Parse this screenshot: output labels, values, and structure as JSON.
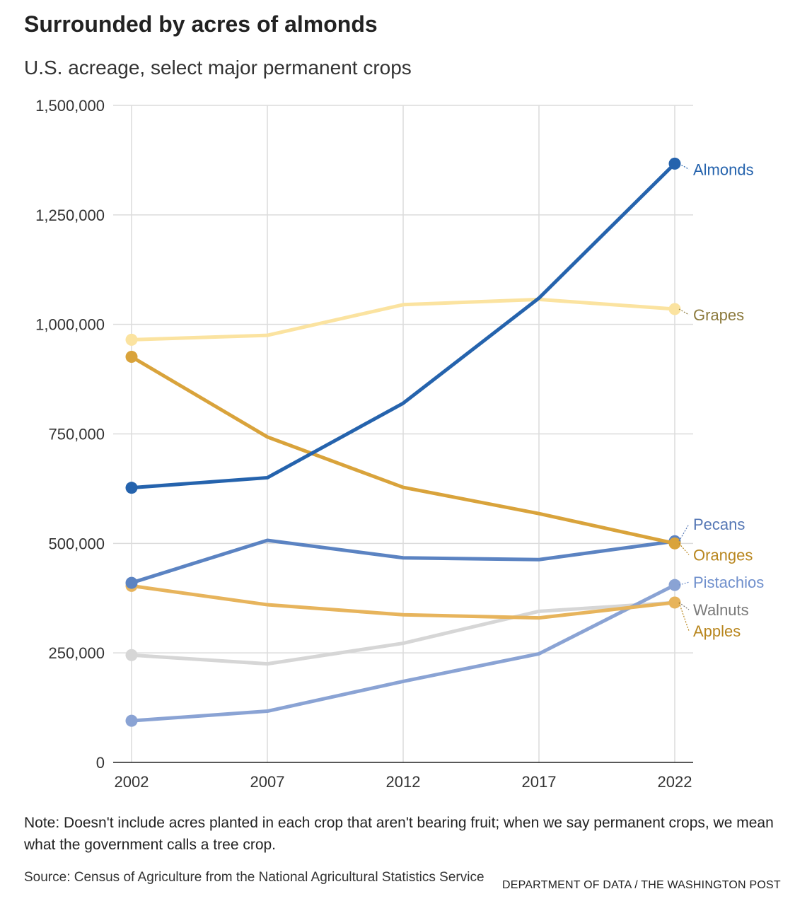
{
  "header": {
    "title": "Surrounded by acres of almonds",
    "subtitle": "U.S. acreage, select major permanent crops"
  },
  "chart_data": {
    "type": "line",
    "title": "Surrounded by acres of almonds",
    "subtitle": "U.S. acreage, select major permanent crops",
    "xlabel": "",
    "ylabel": "",
    "x": [
      2002,
      2007,
      2012,
      2017,
      2022
    ],
    "x_tick_labels": [
      "2002",
      "2007",
      "2012",
      "2017",
      "2022"
    ],
    "ylim": [
      0,
      1500000
    ],
    "y_ticks": [
      0,
      250000,
      500000,
      750000,
      1000000,
      1250000,
      1500000
    ],
    "y_tick_labels": [
      "0",
      "250,000",
      "500,000",
      "750,000",
      "1,000,000",
      "1,250,000",
      "1,500,000"
    ],
    "grid": true,
    "legend": "direct labels at right end of lines",
    "series": [
      {
        "name": "Walnuts",
        "color": "#d6d6d6",
        "label_color": "#7a7a7a",
        "values": [
          245000,
          225000,
          272000,
          345000,
          365000
        ]
      },
      {
        "name": "Pistachios",
        "color": "#8aa3d4",
        "label_color": "#6f8fcc",
        "values": [
          95000,
          117000,
          185000,
          248000,
          405000
        ]
      },
      {
        "name": "Apples",
        "color": "#e7b45c",
        "label_color": "#b8861e",
        "values": [
          403000,
          360000,
          337000,
          330000,
          365000
        ]
      },
      {
        "name": "Pecans",
        "color": "#5b83c2",
        "label_color": "#5577b5",
        "values": [
          410000,
          507000,
          467000,
          463000,
          505000
        ]
      },
      {
        "name": "Oranges",
        "color": "#d9a33b",
        "label_color": "#b8861e",
        "values": [
          926000,
          743000,
          628000,
          568000,
          500000
        ]
      },
      {
        "name": "Grapes",
        "color": "#fbe3a0",
        "label_color": "#8c7a3d",
        "values": [
          965000,
          975000,
          1045000,
          1057000,
          1035000
        ]
      },
      {
        "name": "Almonds",
        "color": "#2563ad",
        "label_color": "#2563ad",
        "values": [
          627000,
          650000,
          820000,
          1060000,
          1367000
        ]
      }
    ]
  },
  "footer": {
    "note": "Note: Doesn't include acres planted in each crop that aren't bearing fruit; when we say permanent crops, we mean what the government calls a tree crop.",
    "source": "Source: Census of Agriculture from the National Agricultural Statistics Service",
    "credit": "DEPARTMENT OF DATA / THE WASHINGTON POST"
  }
}
